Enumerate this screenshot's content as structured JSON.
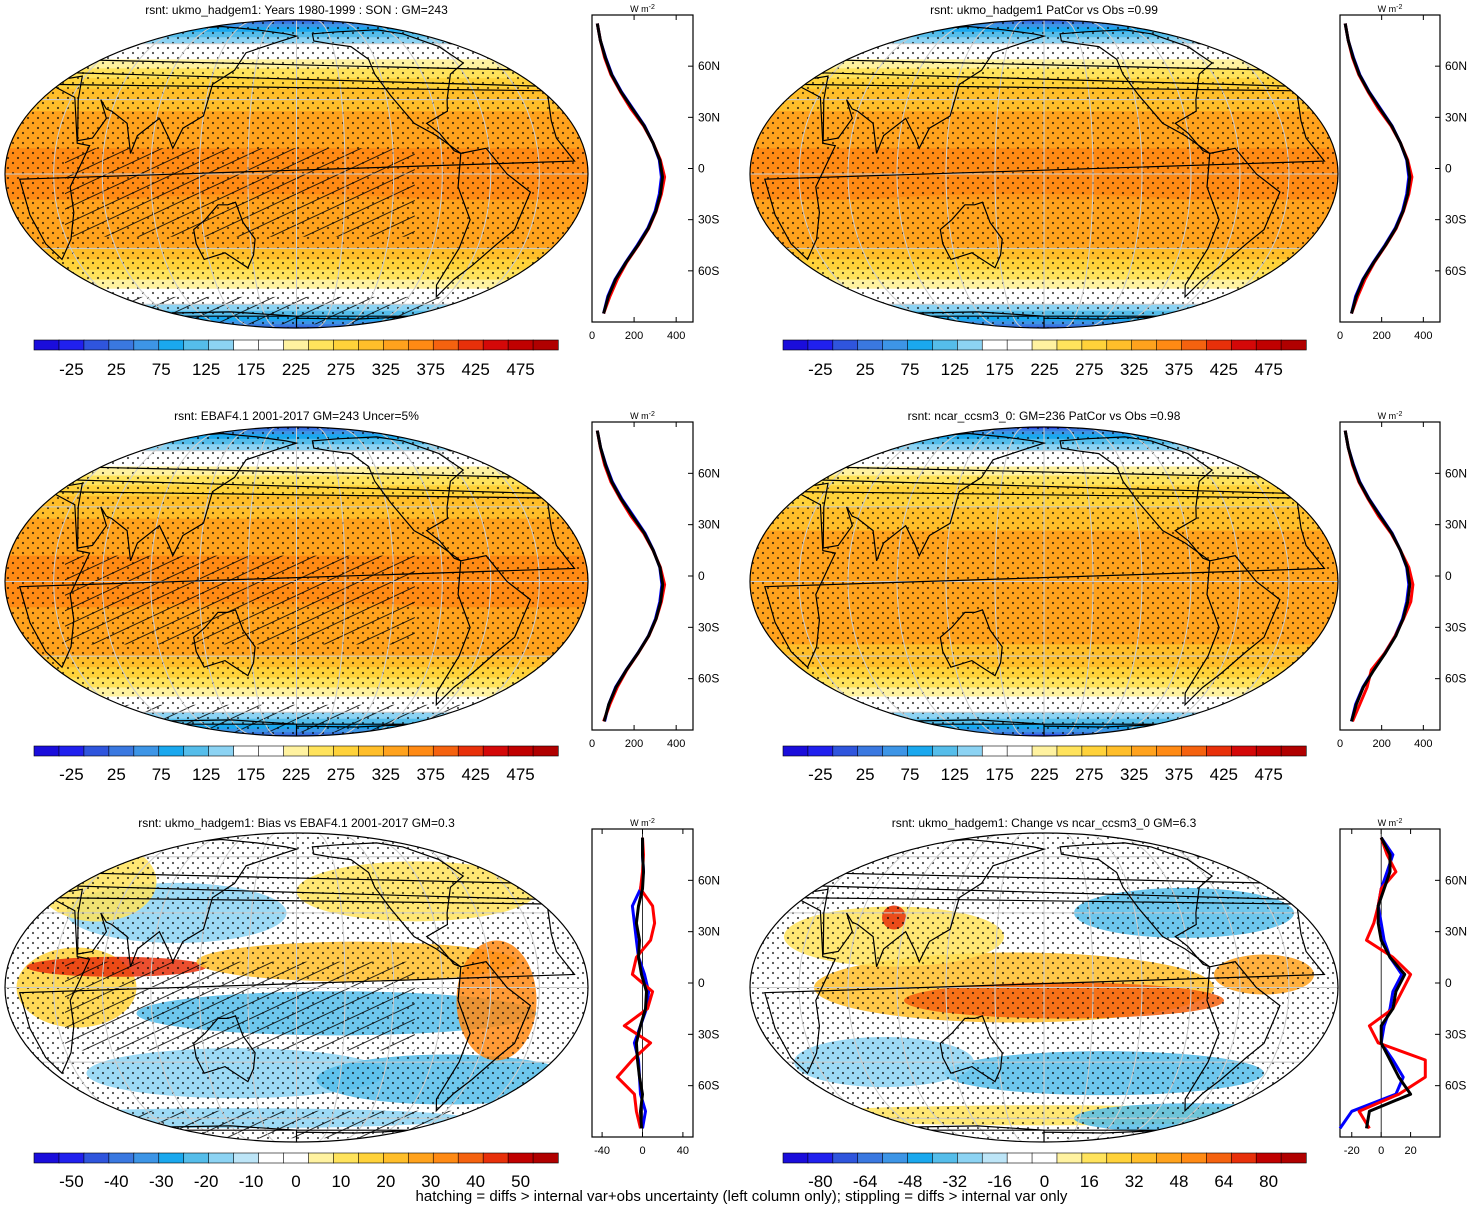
{
  "panels": [
    {
      "title": "rsnt: ukmo_hadgem1: Years 1980-1999 : SON : GM=243",
      "colorbar": {
        "labels": [
          "-25",
          "25",
          "75",
          "125",
          "175",
          "225",
          "275",
          "325",
          "375",
          "425",
          "475"
        ],
        "min": -50,
        "max": 500
      },
      "profile": {
        "xticks": [
          "0",
          "200",
          "400"
        ],
        "xlim": [
          0,
          480
        ],
        "unit": "W m-2"
      }
    },
    {
      "title": "rsnt: ukmo_hadgem1 PatCor vs Obs =0.99",
      "colorbar": {
        "labels": [
          "-25",
          "25",
          "75",
          "125",
          "175",
          "225",
          "275",
          "325",
          "375",
          "425",
          "475"
        ],
        "min": -50,
        "max": 500
      },
      "profile": {
        "xticks": [
          "0",
          "200",
          "400"
        ],
        "xlim": [
          0,
          480
        ],
        "unit": "W m-2"
      }
    },
    {
      "title": "rsnt: EBAF4.1 2001-2017 GM=243 Uncer=5%",
      "colorbar": {
        "labels": [
          "-25",
          "25",
          "75",
          "125",
          "175",
          "225",
          "275",
          "325",
          "375",
          "425",
          "475"
        ],
        "min": -50,
        "max": 500
      },
      "profile": {
        "xticks": [
          "0",
          "200",
          "400"
        ],
        "xlim": [
          0,
          480
        ],
        "unit": "W m-2"
      }
    },
    {
      "title": "rsnt: ncar_ccsm3_0: GM=236 PatCor vs Obs =0.98",
      "colorbar": {
        "labels": [
          "-25",
          "25",
          "75",
          "125",
          "175",
          "225",
          "275",
          "325",
          "375",
          "425",
          "475"
        ],
        "min": -50,
        "max": 500
      },
      "profile": {
        "xticks": [
          "0",
          "200",
          "400"
        ],
        "xlim": [
          0,
          480
        ],
        "unit": "W m-2"
      }
    },
    {
      "title": "rsnt: ukmo_hadgem1: Bias vs EBAF4.1 2001-2017  GM=0.3",
      "colorbar": {
        "labels": [
          "-50",
          "-40",
          "-30",
          "-20",
          "-10",
          "0",
          "10",
          "20",
          "30",
          "40",
          "50"
        ],
        "min": -55,
        "max": 55
      },
      "profile": {
        "xticks": [
          "-40",
          "0",
          "40"
        ],
        "xlim": [
          -50,
          50
        ],
        "unit": "W m-2"
      }
    },
    {
      "title": "rsnt: ukmo_hadgem1: Change vs ncar_ccsm3_0 GM=6.3",
      "colorbar": {
        "labels": [
          "-80",
          "-64",
          "-48",
          "-32",
          "-16",
          "0",
          "16",
          "32",
          "48",
          "64",
          "80"
        ],
        "min": -88,
        "max": 88
      },
      "profile": {
        "xticks": [
          "-20",
          "0",
          "20"
        ],
        "xlim": [
          -28,
          40
        ],
        "unit": "W m-2"
      }
    }
  ],
  "lat_labels": [
    "60N",
    "30N",
    "0",
    "30S",
    "60S"
  ],
  "footer": "hatching = diffs > internal var+obs uncertainty (left column only); stippling = diffs > internal var only",
  "chart_data": [
    {
      "type": "line",
      "title": "rsnt: ukmo_hadgem1: Years 1980-1999 : SON : GM=243",
      "ylabel_ticks": [
        "60N",
        "30N",
        "0",
        "30S",
        "60S"
      ],
      "x": [
        -85,
        -75,
        -65,
        -55,
        -45,
        -35,
        -25,
        -15,
        -5,
        5,
        15,
        25,
        35,
        45,
        55,
        65,
        75,
        85
      ],
      "series": [
        {
          "color": "#0000ff",
          "values": [
            55,
            75,
            110,
            160,
            215,
            265,
            300,
            320,
            330,
            320,
            290,
            250,
            195,
            140,
            95,
            65,
            40,
            25
          ]
        },
        {
          "color": "#ff0000",
          "values": [
            55,
            85,
            120,
            165,
            220,
            270,
            305,
            330,
            345,
            325,
            290,
            245,
            185,
            135,
            90,
            60,
            40,
            25
          ]
        },
        {
          "color": "#000000",
          "values": [
            55,
            78,
            112,
            162,
            218,
            268,
            303,
            325,
            335,
            322,
            290,
            248,
            192,
            138,
            93,
            63,
            40,
            25
          ]
        }
      ],
      "xlim": [
        -90,
        90
      ],
      "ylim": [
        0,
        480
      ]
    },
    {
      "type": "line",
      "title": "rsnt: ukmo_hadgem1 PatCor vs Obs =0.99",
      "ylabel_ticks": [
        "60N",
        "30N",
        "0",
        "30S",
        "60S"
      ],
      "x": [
        -85,
        -75,
        -65,
        -55,
        -45,
        -35,
        -25,
        -15,
        -5,
        5,
        15,
        25,
        35,
        45,
        55,
        65,
        75,
        85
      ],
      "series": [
        {
          "color": "#0000ff",
          "values": [
            55,
            75,
            110,
            160,
            215,
            265,
            300,
            320,
            330,
            320,
            290,
            250,
            195,
            140,
            95,
            65,
            40,
            25
          ]
        },
        {
          "color": "#ff0000",
          "values": [
            55,
            85,
            120,
            165,
            220,
            270,
            305,
            330,
            345,
            325,
            290,
            245,
            185,
            135,
            90,
            60,
            40,
            25
          ]
        },
        {
          "color": "#000000",
          "values": [
            55,
            78,
            112,
            162,
            218,
            268,
            303,
            325,
            335,
            322,
            290,
            248,
            192,
            138,
            93,
            63,
            40,
            25
          ]
        }
      ],
      "xlim": [
        -90,
        90
      ],
      "ylim": [
        0,
        480
      ]
    },
    {
      "type": "line",
      "title": "rsnt: EBAF4.1 2001-2017 GM=243 Uncer=5%",
      "ylabel_ticks": [
        "60N",
        "30N",
        "0",
        "30S",
        "60S"
      ],
      "x": [
        -85,
        -75,
        -65,
        -55,
        -45,
        -35,
        -25,
        -15,
        -5,
        5,
        15,
        25,
        35,
        45,
        55,
        65,
        75,
        85
      ],
      "series": [
        {
          "color": "#0000ff",
          "values": [
            60,
            80,
            112,
            162,
            218,
            268,
            302,
            322,
            332,
            322,
            292,
            252,
            197,
            142,
            97,
            66,
            41,
            25
          ]
        },
        {
          "color": "#ff0000",
          "values": [
            55,
            85,
            120,
            165,
            220,
            270,
            305,
            330,
            345,
            325,
            290,
            245,
            185,
            135,
            90,
            60,
            40,
            25
          ]
        },
        {
          "color": "#000000",
          "values": [
            58,
            80,
            114,
            163,
            219,
            269,
            304,
            326,
            336,
            323,
            291,
            249,
            193,
            139,
            94,
            64,
            41,
            25
          ]
        }
      ],
      "xlim": [
        -90,
        90
      ],
      "ylim": [
        0,
        480
      ]
    },
    {
      "type": "line",
      "title": "rsnt: ncar_ccsm3_0: GM=236 PatCor vs Obs =0.98",
      "ylabel_ticks": [
        "60N",
        "30N",
        "0",
        "30S",
        "60S"
      ],
      "x": [
        -85,
        -75,
        -65,
        -55,
        -45,
        -35,
        -25,
        -15,
        -5,
        5,
        15,
        25,
        35,
        45,
        55,
        65,
        75,
        85
      ],
      "series": [
        {
          "color": "#0000ff",
          "values": [
            55,
            75,
            110,
            160,
            215,
            265,
            300,
            320,
            330,
            320,
            290,
            250,
            195,
            140,
            95,
            65,
            40,
            25
          ]
        },
        {
          "color": "#ff0000",
          "values": [
            60,
            95,
            130,
            150,
            215,
            265,
            305,
            340,
            350,
            330,
            290,
            245,
            185,
            135,
            90,
            60,
            40,
            25
          ]
        },
        {
          "color": "#000000",
          "values": [
            55,
            78,
            112,
            162,
            218,
            268,
            303,
            325,
            335,
            322,
            290,
            248,
            192,
            138,
            93,
            63,
            40,
            25
          ]
        }
      ],
      "xlim": [
        -90,
        90
      ],
      "ylim": [
        0,
        480
      ]
    },
    {
      "type": "line",
      "title": "rsnt: ukmo_hadgem1: Bias vs EBAF4.1 2001-2017  GM=0.3",
      "ylabel_ticks": [
        "60N",
        "30N",
        "0",
        "30S",
        "60S"
      ],
      "x": [
        -85,
        -75,
        -65,
        -55,
        -45,
        -35,
        -25,
        -15,
        -5,
        5,
        15,
        25,
        35,
        45,
        55,
        65,
        75,
        85
      ],
      "series": [
        {
          "color": "#0000ff",
          "values": [
            0,
            3,
            -2,
            -3,
            -4,
            -8,
            -2,
            4,
            6,
            2,
            -4,
            -6,
            -8,
            -10,
            -2,
            1,
            0,
            0
          ]
        },
        {
          "color": "#ff0000",
          "values": [
            -2,
            -6,
            -8,
            -25,
            -10,
            8,
            -18,
            5,
            10,
            -10,
            -6,
            8,
            12,
            10,
            -2,
            0,
            1,
            0
          ]
        },
        {
          "color": "#000000",
          "values": [
            -1,
            -2,
            0,
            -3,
            -5,
            -6,
            -2,
            3,
            4,
            -1,
            -4,
            -3,
            -6,
            -4,
            0,
            1,
            0,
            0
          ]
        }
      ],
      "xlim": [
        -90,
        90
      ],
      "ylim": [
        -50,
        50
      ]
    },
    {
      "type": "line",
      "title": "rsnt: ukmo_hadgem1: Change vs ncar_ccsm3_0 GM=6.3",
      "ylabel_ticks": [
        "60N",
        "30N",
        "0",
        "30S",
        "60S"
      ],
      "x": [
        -85,
        -75,
        -65,
        -55,
        -45,
        -35,
        -25,
        -15,
        -5,
        5,
        15,
        25,
        35,
        45,
        55,
        65,
        75,
        85
      ],
      "series": [
        {
          "color": "#0000ff",
          "values": [
            -28,
            -20,
            10,
            15,
            8,
            0,
            2,
            6,
            8,
            14,
            6,
            2,
            0,
            -2,
            0,
            4,
            8,
            0
          ]
        },
        {
          "color": "#ff0000",
          "values": [
            -8,
            -15,
            12,
            30,
            30,
            -2,
            -8,
            8,
            14,
            20,
            8,
            -10,
            -5,
            -2,
            0,
            10,
            4,
            0
          ]
        },
        {
          "color": "#000000",
          "values": [
            -10,
            -8,
            20,
            12,
            6,
            0,
            0,
            8,
            10,
            16,
            6,
            0,
            -2,
            -2,
            2,
            6,
            6,
            0
          ]
        }
      ],
      "xlim": [
        -90,
        90
      ],
      "ylim": [
        -28,
        40
      ]
    }
  ]
}
